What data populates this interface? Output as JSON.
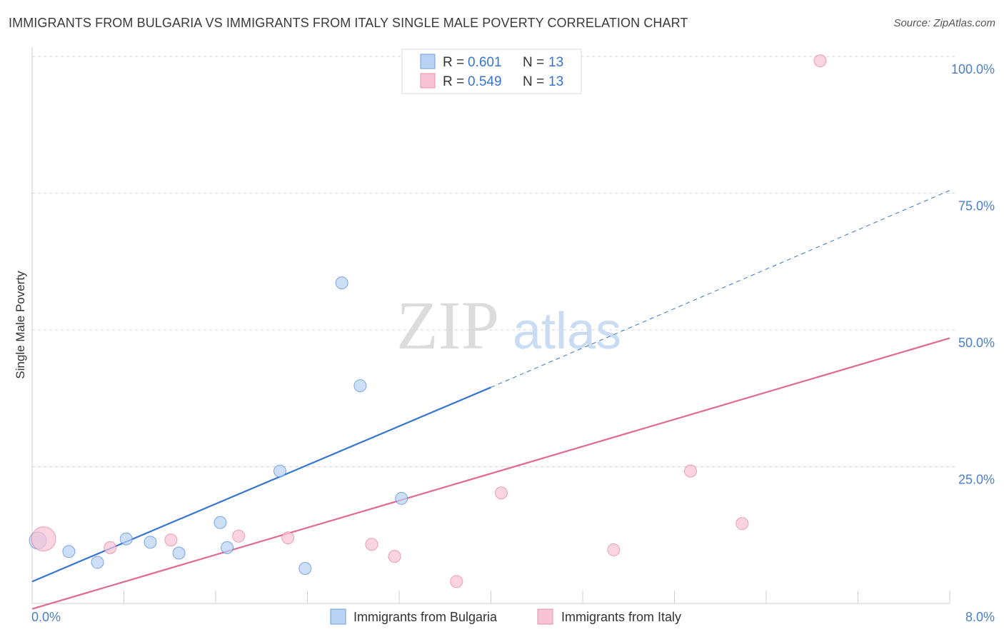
{
  "chart_data": {
    "type": "scatter",
    "title": "IMMIGRANTS FROM BULGARIA VS IMMIGRANTS FROM ITALY SINGLE MALE POVERTY CORRELATION CHART",
    "source": "Source: ZipAtlas.com",
    "xlabel": "",
    "ylabel": "Single Male Poverty",
    "xlim": [
      0,
      8
    ],
    "ylim": [
      0,
      100
    ],
    "x_tick_labels": [
      "0.0%",
      "8.0%"
    ],
    "y_ticks": [
      25,
      50,
      75,
      100
    ],
    "y_tick_labels": [
      "25.0%",
      "50.0%",
      "75.0%",
      "100.0%"
    ],
    "grid": true,
    "watermark": {
      "zip": "ZIP",
      "atlas": "atlas"
    },
    "legend": {
      "position": "top-center",
      "entries": [
        {
          "r_label": "R =",
          "r_value": "0.601",
          "n_label": "N =",
          "n_value": "13"
        },
        {
          "r_label": "R =",
          "r_value": "0.549",
          "n_label": "N =",
          "n_value": "13"
        }
      ]
    },
    "series": [
      {
        "name": "Immigrants from Bulgaria",
        "color": "#3575d0",
        "fill": "#b8d2f3",
        "points": [
          [
            0.05,
            11.5
          ],
          [
            0.32,
            9.5
          ],
          [
            0.57,
            7.5
          ],
          [
            0.82,
            11.8
          ],
          [
            1.03,
            11.2
          ],
          [
            1.28,
            9.2
          ],
          [
            1.64,
            14.8
          ],
          [
            1.7,
            10.2
          ],
          [
            2.16,
            24.2
          ],
          [
            2.38,
            6.4
          ],
          [
            2.7,
            58.6
          ],
          [
            2.86,
            39.8
          ],
          [
            3.22,
            19.2
          ]
        ],
        "trend": {
          "solid": [
            [
              0,
              4
            ],
            [
              4.0,
              39.5
            ]
          ],
          "dashed": [
            [
              4.0,
              39.5
            ],
            [
              8.0,
              75.5
            ]
          ]
        }
      },
      {
        "name": "Immigrants from Italy",
        "color": "#e06a93",
        "fill": "#f8c3d4",
        "points": [
          [
            0.1,
            11.8
          ],
          [
            0.68,
            10.2
          ],
          [
            1.21,
            11.6
          ],
          [
            1.8,
            12.3
          ],
          [
            2.23,
            12.0
          ],
          [
            2.96,
            10.8
          ],
          [
            3.16,
            8.6
          ],
          [
            3.7,
            4.0
          ],
          [
            4.09,
            20.2
          ],
          [
            5.07,
            9.8
          ],
          [
            5.74,
            24.2
          ],
          [
            6.19,
            14.6
          ],
          [
            6.87,
            99.2
          ]
        ],
        "trend": {
          "solid": [
            [
              0,
              -1
            ],
            [
              8.0,
              48.5
            ]
          ]
        }
      }
    ]
  }
}
